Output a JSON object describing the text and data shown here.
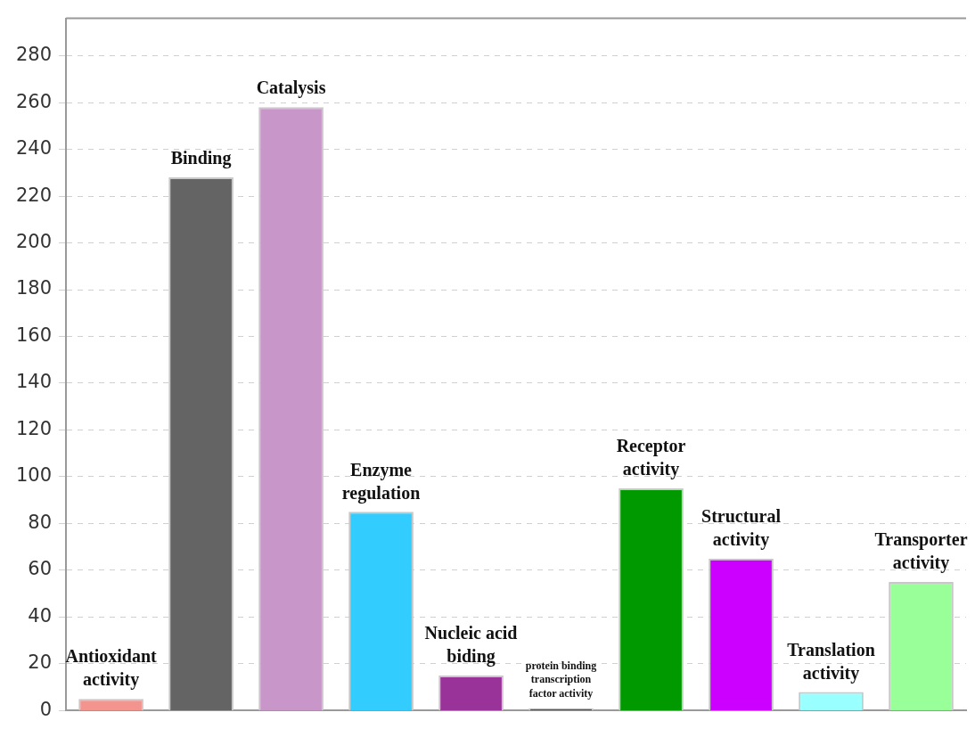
{
  "chart_data": {
    "type": "bar",
    "categories": [
      "Antioxidant activity",
      "Binding",
      "Catalysis",
      "Enzyme regulation",
      "Nucleic acid biding",
      "protein binding transcription factor activity",
      "Receptor activity",
      "Structural activity",
      "Translation activity",
      "Transporter activity"
    ],
    "values": [
      5,
      228,
      258,
      85,
      15,
      1,
      95,
      65,
      8,
      55
    ],
    "colors": [
      "#f4948f",
      "#646464",
      "#c896c8",
      "#33ccff",
      "#993399",
      "#555555",
      "#009900",
      "#cc00ff",
      "#99ffff",
      "#99ff99"
    ],
    "ylim": [
      0,
      296
    ],
    "yticks": [
      0,
      20,
      40,
      60,
      80,
      100,
      120,
      140,
      160,
      180,
      200,
      220,
      240,
      260,
      280
    ],
    "grid": "y"
  }
}
